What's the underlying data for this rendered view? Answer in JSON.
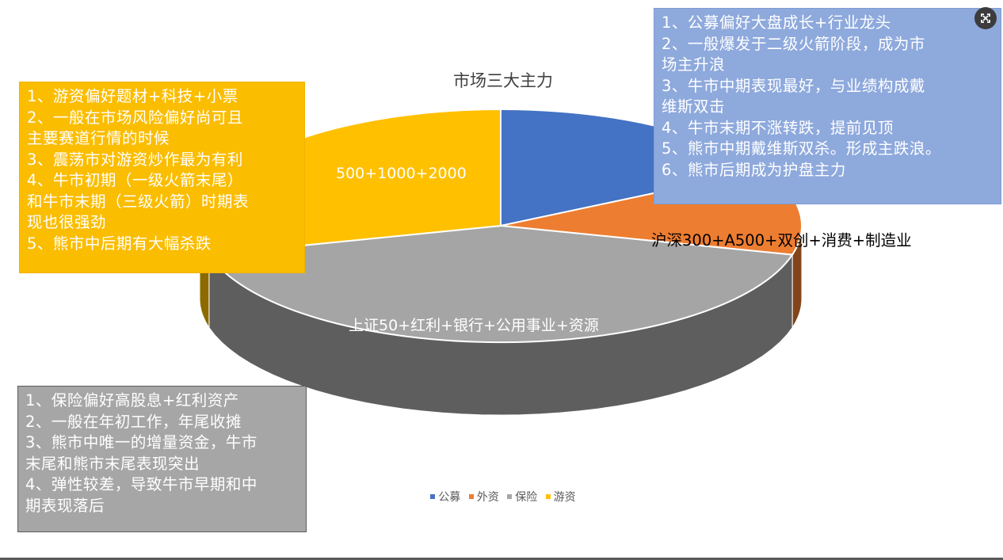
{
  "chart_data": {
    "type": "pie",
    "style": "3d-exploded",
    "title": "市场三大主力",
    "legend_position": "bottom",
    "slices": [
      {
        "name": "公募",
        "value": 17,
        "color": "#4472c4",
        "label": ""
      },
      {
        "name": "外资",
        "value": 12,
        "color": "#ed7d31",
        "label": "沪深300+A500+双创+消费+制造业"
      },
      {
        "name": "保险",
        "value": 42,
        "color": "#a5a5a5",
        "label": "上证50+红利+银行+公用事业+资源"
      },
      {
        "name": "游资",
        "value": 29,
        "color": "#ffc000",
        "label": "500+1000+2000"
      }
    ]
  },
  "notes": {
    "youzi": [
      "1、游资偏好题材+科技+小票",
      "2、一般在市场风险偏好尚可且",
      "主要赛道行情的时候",
      "3、震荡市对游资炒作最为有利",
      "4、牛市初期（一级火箭末尾）",
      "和牛市末期（三级火箭）时期表",
      "现也很强劲",
      "5、熊市中后期有大幅杀跌"
    ],
    "gongmu": [
      "1、公募偏好大盘成长+行业龙头",
      "2、一般爆发于二级火箭阶段，成为市",
      "场主升浪",
      "3、牛市中期表现最好，与业绩构成戴",
      "维斯双击",
      "4、牛市末期不涨转跌，提前见顶",
      "5、熊市中期戴维斯双杀。形成主跌浪。",
      "6、熊市后期成为护盘主力"
    ],
    "baoxian": [
      "1、保险偏好高股息+红利资产",
      "2、一般在年初工作，年尾收摊",
      "3、熊市中唯一的增量资金，牛市",
      "末尾和熊市末尾表现突出",
      "4、弹性较差，导致牛市早期和中",
      "期表现落后"
    ]
  },
  "ui": {
    "expand_icon": "expand-icon"
  }
}
